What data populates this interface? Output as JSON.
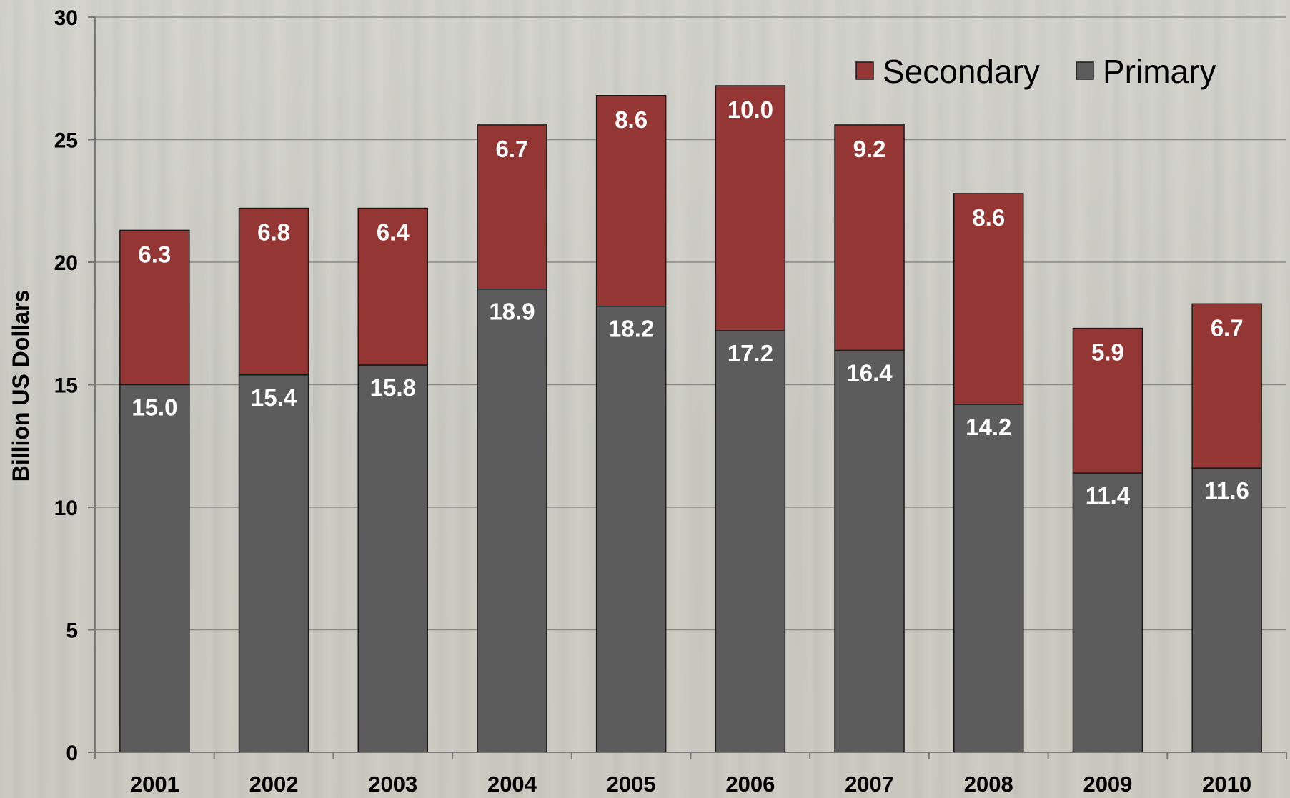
{
  "chart_data": {
    "type": "bar",
    "stacked": true,
    "categories": [
      "2001",
      "2002",
      "2003",
      "2004",
      "2005",
      "2006",
      "2007",
      "2008",
      "2009",
      "2010"
    ],
    "series": [
      {
        "name": "Primary",
        "color": "#5c5c5c",
        "values": [
          15.0,
          15.4,
          15.8,
          18.9,
          18.2,
          17.2,
          16.4,
          14.2,
          11.4,
          11.6
        ]
      },
      {
        "name": "Secondary",
        "color": "#943634",
        "values": [
          6.3,
          6.8,
          6.4,
          6.7,
          8.6,
          10.0,
          9.2,
          8.6,
          5.9,
          6.7
        ]
      }
    ],
    "value_labels": {
      "Primary": [
        "15.0",
        "15.4",
        "15.8",
        "18.9",
        "18.2",
        "17.2",
        "16.4",
        "14.2",
        "11.4",
        "11.6"
      ],
      "Secondary": [
        "6.3",
        "6.8",
        "6.4",
        "6.7",
        "8.6",
        "10.0",
        "9.2",
        "8.6",
        "5.9",
        "6.7"
      ]
    },
    "title": "",
    "xlabel": "",
    "ylabel": "Billion US Dollars",
    "ylim": [
      0,
      30
    ],
    "yticks": [
      0,
      5,
      10,
      15,
      20,
      25,
      30
    ],
    "grid": true,
    "legend": {
      "position": "top-right",
      "order": [
        "Secondary",
        "Primary"
      ]
    },
    "background": "forest photograph"
  }
}
